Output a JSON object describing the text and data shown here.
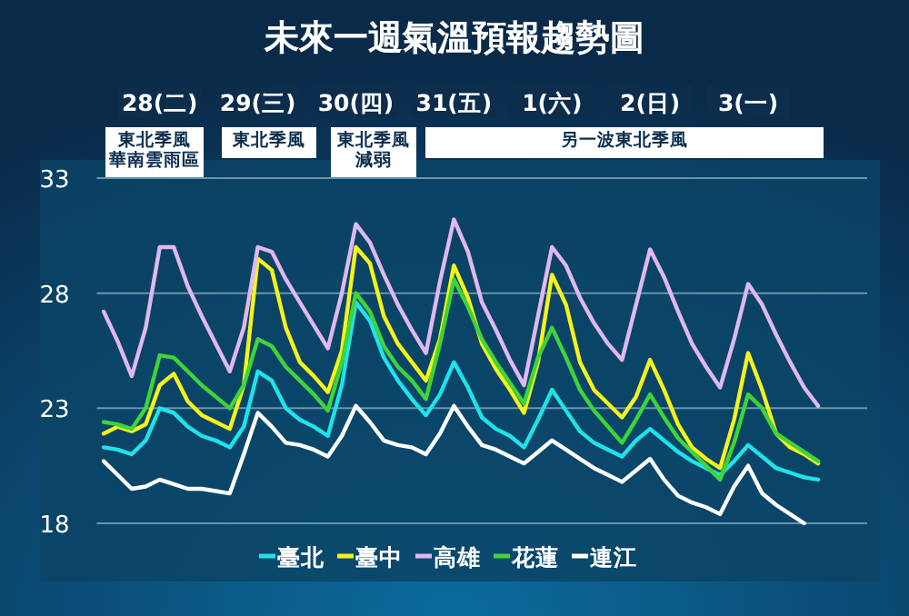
{
  "chart_data": {
    "type": "line",
    "title": "未來一週氣溫預報趨勢圖",
    "categories": [
      null,
      null,
      null,
      null,
      "28(二)",
      null,
      null,
      null,
      null,
      null,
      null,
      "29(三)",
      null,
      null,
      null,
      null,
      null,
      null,
      "30(四)",
      null,
      null,
      null,
      null,
      null,
      null,
      "31(五)",
      null,
      null,
      null,
      null,
      null,
      null,
      "1(六)",
      null,
      null,
      null,
      null,
      null,
      null,
      "2(日)",
      null,
      null,
      null,
      null,
      null,
      null,
      "3(一)",
      null,
      null,
      null,
      null,
      null
    ],
    "ylim": [
      18,
      33
    ],
    "yticks": [
      18,
      23,
      28,
      33
    ],
    "grid": "y",
    "legend": "bottom",
    "annotations": [
      "東北季風華南雲雨區",
      "東北季風",
      "東北季風減弱",
      "另一波東北季風"
    ],
    "series": [
      {
        "name": "臺北",
        "color": "#1ee3ea",
        "values": [
          21.3,
          21.2,
          21.0,
          21.6,
          23.0,
          22.8,
          22.2,
          21.8,
          21.6,
          21.3,
          22.2,
          24.6,
          24.2,
          23.0,
          22.5,
          22.2,
          21.8,
          24.0,
          27.6,
          26.8,
          25.2,
          24.2,
          23.4,
          22.7,
          23.6,
          25.0,
          23.9,
          22.6,
          22.1,
          21.8,
          21.3,
          22.5,
          23.8,
          22.9,
          22.0,
          21.5,
          21.2,
          20.9,
          21.6,
          22.1,
          21.6,
          21.1,
          20.7,
          20.4,
          20.1,
          20.7,
          21.4,
          20.9,
          20.4,
          20.2,
          20.0,
          19.9
        ]
      },
      {
        "name": "臺中",
        "color": "#f4f41a",
        "values": [
          21.9,
          22.2,
          22.0,
          22.3,
          24.0,
          24.5,
          23.3,
          22.7,
          22.4,
          22.1,
          24.0,
          29.5,
          29.0,
          26.5,
          25.0,
          24.4,
          23.7,
          25.5,
          30.0,
          29.3,
          27.0,
          25.8,
          25.0,
          24.2,
          26.0,
          29.2,
          27.8,
          25.8,
          24.7,
          23.8,
          22.8,
          25.0,
          28.8,
          27.5,
          25.0,
          23.8,
          23.2,
          22.6,
          23.5,
          25.1,
          23.8,
          22.3,
          21.3,
          20.8,
          20.4,
          22.5,
          25.4,
          23.8,
          21.9,
          21.3,
          21.0,
          20.6
        ]
      },
      {
        "name": "高雄",
        "color": "#e0b8f0",
        "values": [
          27.2,
          25.9,
          24.4,
          26.5,
          30.0,
          30.0,
          28.3,
          27.0,
          25.8,
          24.6,
          26.5,
          30.0,
          29.8,
          28.6,
          27.6,
          26.6,
          25.6,
          28.0,
          31.0,
          30.2,
          28.8,
          27.5,
          26.4,
          25.4,
          28.5,
          31.2,
          29.8,
          27.6,
          26.4,
          25.1,
          24.0,
          27.0,
          30.0,
          29.2,
          27.8,
          26.7,
          25.8,
          25.1,
          27.5,
          29.9,
          28.7,
          27.2,
          25.8,
          24.8,
          23.9,
          26.0,
          28.4,
          27.5,
          26.2,
          25.0,
          23.9,
          23.1
        ]
      },
      {
        "name": "花蓮",
        "color": "#3ed43a",
        "values": [
          22.4,
          22.3,
          22.1,
          23.0,
          25.3,
          25.2,
          24.6,
          24.0,
          23.5,
          23.0,
          24.0,
          26.0,
          25.7,
          24.8,
          24.2,
          23.6,
          22.9,
          25.0,
          28.0,
          27.2,
          25.7,
          24.8,
          24.2,
          23.4,
          25.8,
          28.6,
          27.4,
          26.0,
          25.0,
          24.1,
          23.2,
          25.2,
          26.5,
          25.2,
          23.8,
          22.9,
          22.2,
          21.5,
          22.5,
          23.6,
          22.6,
          21.7,
          21.1,
          20.5,
          19.9,
          21.5,
          23.6,
          23.0,
          21.9,
          21.5,
          21.1,
          20.7
        ]
      },
      {
        "name": "連江",
        "color": "#ffffff",
        "values": [
          20.7,
          20.1,
          19.5,
          19.6,
          19.9,
          19.7,
          19.5,
          19.5,
          19.4,
          19.3,
          21.0,
          22.8,
          22.2,
          21.5,
          21.4,
          21.2,
          20.9,
          21.8,
          23.1,
          22.4,
          21.6,
          21.4,
          21.3,
          21.0,
          21.9,
          23.1,
          22.2,
          21.4,
          21.2,
          20.9,
          20.6,
          21.1,
          21.6,
          21.2,
          20.8,
          20.4,
          20.1,
          19.8,
          20.3,
          20.8,
          19.9,
          19.2,
          18.9,
          18.7,
          18.4,
          19.6,
          20.5,
          19.3,
          18.8,
          18.4,
          18.0,
          null
        ]
      }
    ]
  }
}
